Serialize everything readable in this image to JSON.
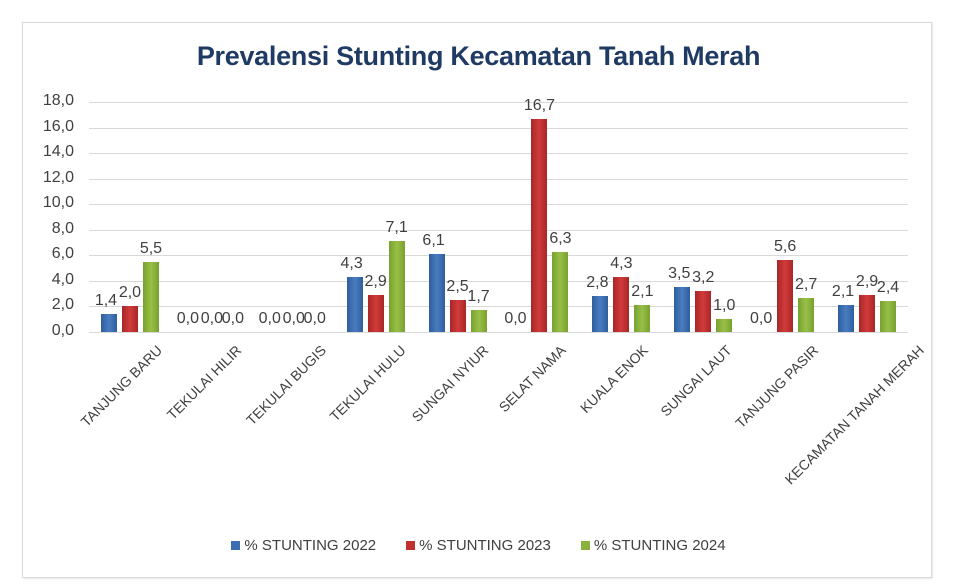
{
  "chart_data": {
    "type": "bar",
    "title": "Prevalensi Stunting Kecamatan Tanah Merah",
    "xlabel": "",
    "ylabel": "",
    "ylim": [
      0,
      18
    ],
    "yticks": [
      "0,0",
      "2,0",
      "4,0",
      "6,0",
      "8,0",
      "10,0",
      "12,0",
      "14,0",
      "16,0",
      "18,0"
    ],
    "grid": true,
    "legend_position": "bottom",
    "categories": [
      "TANJUNG BARU",
      "TEKULAI HILIR",
      "TEKULAI BUGIS",
      "TEKULAI HULU",
      "SUNGAI NYIUR",
      "SELAT NAMA",
      "KUALA ENOK",
      "SUNGAI LAUT",
      "TANJUNG PASIR",
      "KECAMATAN TANAH MERAH"
    ],
    "series": [
      {
        "name": "% STUNTING 2022",
        "color": "#3b6eb0",
        "values": [
          1.4,
          0.0,
          0.0,
          4.3,
          6.1,
          0.0,
          2.8,
          3.5,
          0.0,
          2.1
        ]
      },
      {
        "name": "% STUNTING 2023",
        "color": "#c0302f",
        "values": [
          2.0,
          0.0,
          0.0,
          2.9,
          2.5,
          16.7,
          4.3,
          3.2,
          5.6,
          2.9
        ]
      },
      {
        "name": "% STUNTING 2024",
        "color": "#8ab13e",
        "values": [
          5.5,
          0.0,
          0.0,
          7.1,
          1.7,
          6.3,
          2.1,
          1.0,
          2.7,
          2.4
        ]
      }
    ],
    "data_labels": [
      [
        "1,4",
        "0,0",
        "0,0",
        "4,3",
        "6,1",
        "0,0",
        "2,8",
        "3,5",
        "0,0",
        "2,1"
      ],
      [
        "2,0",
        "0,0",
        "0,0",
        "2,9",
        "2,5",
        "16,7",
        "4,3",
        "3,2",
        "5,6",
        "2,9"
      ],
      [
        "5,5",
        "0,0",
        "0,0",
        "7,1",
        "1,7",
        "6,3",
        "2,1",
        "1,0",
        "2,7",
        "2,4"
      ]
    ]
  }
}
